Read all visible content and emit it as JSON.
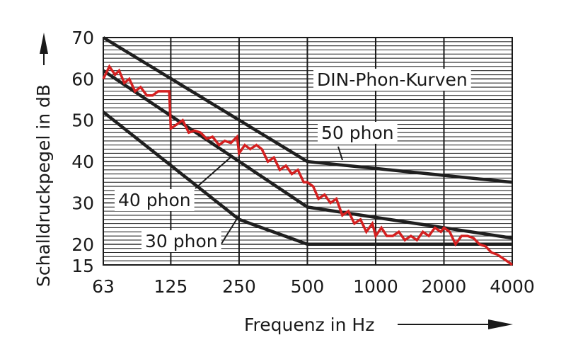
{
  "chart_data": {
    "type": "line",
    "title": "DIN-Phon-Kurven",
    "xlabel": "Frequenz in Hz",
    "ylabel": "Schalldruckpegel in dB",
    "x_scale": "log2",
    "x_ticks": [
      63,
      125,
      250,
      500,
      1000,
      2000,
      4000
    ],
    "y_ticks": [
      15,
      20,
      30,
      40,
      50,
      60,
      70
    ],
    "xlim": [
      63,
      4000
    ],
    "ylim": [
      15,
      70
    ],
    "grid": "horizontal lines every 1 dB, vertical lines at each octave",
    "series": [
      {
        "name": "50 phon",
        "color": "#1f1f1f",
        "x": [
          63,
          500,
          4000
        ],
        "y": [
          70,
          40,
          35
        ]
      },
      {
        "name": "40 phon",
        "color": "#1f1f1f",
        "x": [
          63,
          500,
          4000
        ],
        "y": [
          62,
          29,
          21.5
        ]
      },
      {
        "name": "30 phon",
        "color": "#1f1f1f",
        "x": [
          63,
          250,
          500,
          4000
        ],
        "y": [
          52,
          26,
          20,
          20
        ]
      },
      {
        "name": "",
        "color": "#d42020",
        "x": [
          63,
          67,
          71,
          74,
          78,
          82,
          87,
          92,
          98,
          104,
          110,
          117,
          123,
          125,
          133,
          141,
          150,
          159,
          169,
          180,
          191,
          204,
          216,
          230,
          245,
          250,
          265,
          280,
          298,
          315,
          335,
          356,
          378,
          402,
          427,
          454,
          482,
          500,
          530,
          560,
          595,
          632,
          671,
          713,
          758,
          806,
          857,
          910,
          967,
          1000,
          1060,
          1120,
          1190,
          1265,
          1345,
          1430,
          1520,
          1615,
          1715,
          1825,
          1940,
          2000,
          2120,
          2250,
          2390,
          2540,
          2700,
          2870,
          3050,
          3240,
          3440,
          3660,
          3890,
          4000
        ],
        "y": [
          60,
          63,
          61,
          62,
          59,
          60,
          57,
          58,
          56,
          56,
          57,
          57,
          57,
          48,
          49,
          50,
          47,
          47.5,
          47,
          45.5,
          46,
          44,
          45,
          44.5,
          46,
          42,
          44,
          43,
          44,
          43,
          40,
          41,
          38,
          39,
          37,
          38,
          35,
          35,
          34,
          31,
          32,
          30,
          31,
          27,
          28,
          25,
          26,
          23,
          25,
          22,
          24,
          22,
          22,
          23,
          21,
          22,
          21,
          23,
          22,
          24,
          23,
          24,
          23,
          20,
          22,
          22,
          21.5,
          20,
          19.5,
          18,
          17.5,
          16.5,
          15.5,
          15
        ]
      }
    ]
  }
}
